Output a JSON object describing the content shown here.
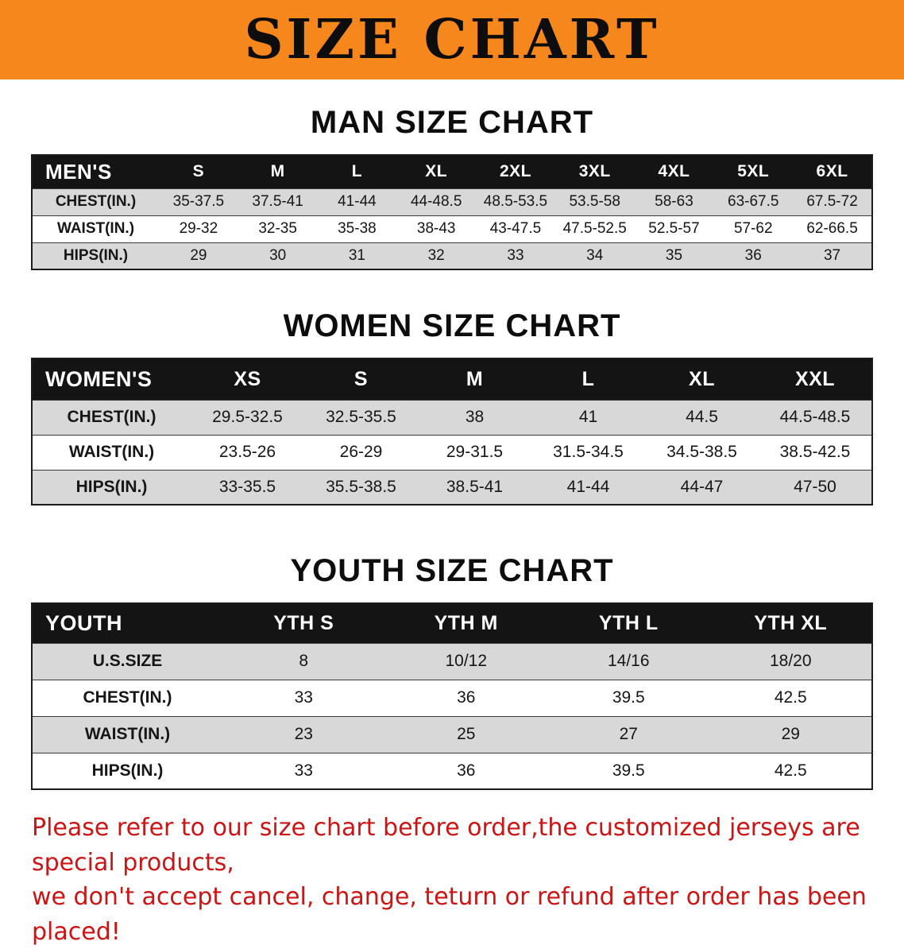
{
  "banner": {
    "title": "SIZE CHART",
    "bg_color": "#f6871d"
  },
  "sections": [
    {
      "id": "men",
      "heading": "MAN SIZE CHART",
      "table": {
        "header": [
          "MEN'S",
          "S",
          "M",
          "L",
          "XL",
          "2XL",
          "3XL",
          "4XL",
          "5XL",
          "6XL"
        ],
        "rows": [
          [
            "CHEST(IN.)",
            "35-37.5",
            "37.5-41",
            "41-44",
            "44-48.5",
            "48.5-53.5",
            "53.5-58",
            "58-63",
            "63-67.5",
            "67.5-72"
          ],
          [
            "WAIST(IN.)",
            "29-32",
            "32-35",
            "35-38",
            "38-43",
            "43-47.5",
            "47.5-52.5",
            "52.5-57",
            "57-62",
            "62-66.5"
          ],
          [
            "HIPS(IN.)",
            "29",
            "30",
            "31",
            "32",
            "33",
            "34",
            "35",
            "36",
            "37"
          ]
        ]
      }
    },
    {
      "id": "women",
      "heading": "WOMEN SIZE CHART",
      "table": {
        "header": [
          "WOMEN'S",
          "XS",
          "S",
          "M",
          "L",
          "XL",
          "XXL"
        ],
        "rows": [
          [
            "CHEST(IN.)",
            "29.5-32.5",
            "32.5-35.5",
            "38",
            "41",
            "44.5",
            "44.5-48.5"
          ],
          [
            "WAIST(IN.)",
            "23.5-26",
            "26-29",
            "29-31.5",
            "31.5-34.5",
            "34.5-38.5",
            "38.5-42.5"
          ],
          [
            "HIPS(IN.)",
            "33-35.5",
            "35.5-38.5",
            "38.5-41",
            "41-44",
            "44-47",
            "47-50"
          ]
        ]
      }
    },
    {
      "id": "youth",
      "heading": "YOUTH SIZE CHART",
      "table": {
        "header": [
          "YOUTH",
          "YTH S",
          "YTH M",
          "YTH L",
          "YTH XL"
        ],
        "rows": [
          [
            "U.S.SIZE",
            "8",
            "10/12",
            "14/16",
            "18/20"
          ],
          [
            "CHEST(IN.)",
            "33",
            "36",
            "39.5",
            "42.5"
          ],
          [
            "WAIST(IN.)",
            "23",
            "25",
            "27",
            "29"
          ],
          [
            "HIPS(IN.)",
            "33",
            "36",
            "39.5",
            "42.5"
          ]
        ]
      }
    }
  ],
  "disclaimer": {
    "color": "#cc1414",
    "lines": [
      "Please refer to our size chart before order,the customized jerseys are special products,",
      "we don't accept cancel, change, teturn or refund after order has been placed!"
    ]
  }
}
